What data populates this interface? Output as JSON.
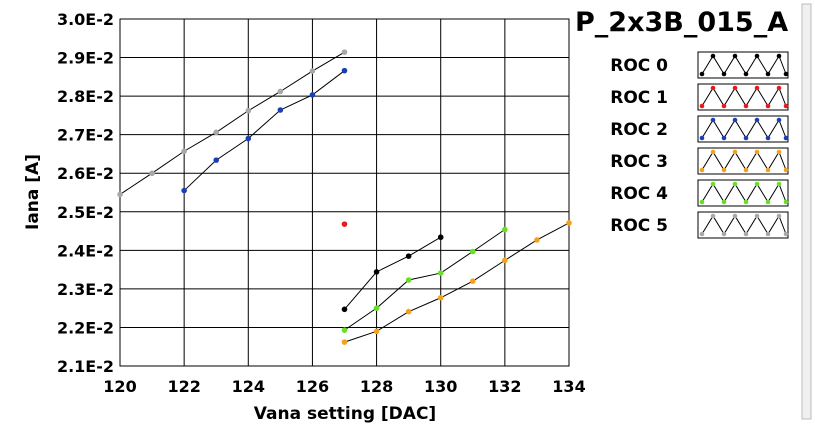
{
  "chart_data": {
    "type": "scatter",
    "title": "P_2x3B_015_A",
    "xlabel": "Vana setting [DAC]",
    "ylabel": "Iana [A]",
    "xlim": [
      120,
      134
    ],
    "ylim": [
      0.021,
      0.03
    ],
    "x_ticks": [
      120,
      122,
      124,
      126,
      128,
      130,
      132,
      134
    ],
    "x_tick_labels": [
      "120",
      "122",
      "124",
      "126",
      "128",
      "130",
      "132",
      "134"
    ],
    "y_ticks": [
      0.021,
      0.022,
      0.023,
      0.024,
      0.025,
      0.026,
      0.027,
      0.028,
      0.029,
      0.03
    ],
    "y_tick_labels": [
      "2.1E-2",
      "2.2E-2",
      "2.3E-2",
      "2.4E-2",
      "2.5E-2",
      "2.6E-2",
      "2.7E-2",
      "2.8E-2",
      "2.9E-2",
      "3.0E-2"
    ],
    "grid": true,
    "legend_position": "right",
    "series": [
      {
        "name": "ROC 0",
        "color": "#000000",
        "x": [
          127,
          128,
          129,
          130
        ],
        "y": [
          0.02247,
          0.02344,
          0.02385,
          0.02434
        ]
      },
      {
        "name": "ROC 1",
        "color": "#e8191a",
        "x": [
          127
        ],
        "y": [
          0.02468
        ]
      },
      {
        "name": "ROC 2",
        "color": "#1a3fb5",
        "x": [
          122,
          123,
          124,
          125,
          126,
          127
        ],
        "y": [
          0.02555,
          0.02634,
          0.0269,
          0.02764,
          0.02803,
          0.02866
        ]
      },
      {
        "name": "ROC 3",
        "color": "#f5a01a",
        "x": [
          127,
          128,
          129,
          130,
          131,
          132,
          133,
          134
        ],
        "y": [
          0.02162,
          0.0219,
          0.02241,
          0.02277,
          0.0232,
          0.02374,
          0.02427,
          0.02471
        ]
      },
      {
        "name": "ROC 4",
        "color": "#66e020",
        "x": [
          127,
          128,
          129,
          130,
          131,
          132
        ],
        "y": [
          0.02193,
          0.0225,
          0.02323,
          0.02341,
          0.02397,
          0.02454
        ]
      },
      {
        "name": "ROC 5",
        "color": "#a8a8a8",
        "x": [
          120,
          121,
          122,
          123,
          124,
          125,
          126,
          127
        ],
        "y": [
          0.02545,
          0.026,
          0.02657,
          0.02706,
          0.02762,
          0.02812,
          0.02865,
          0.02914
        ]
      }
    ]
  }
}
